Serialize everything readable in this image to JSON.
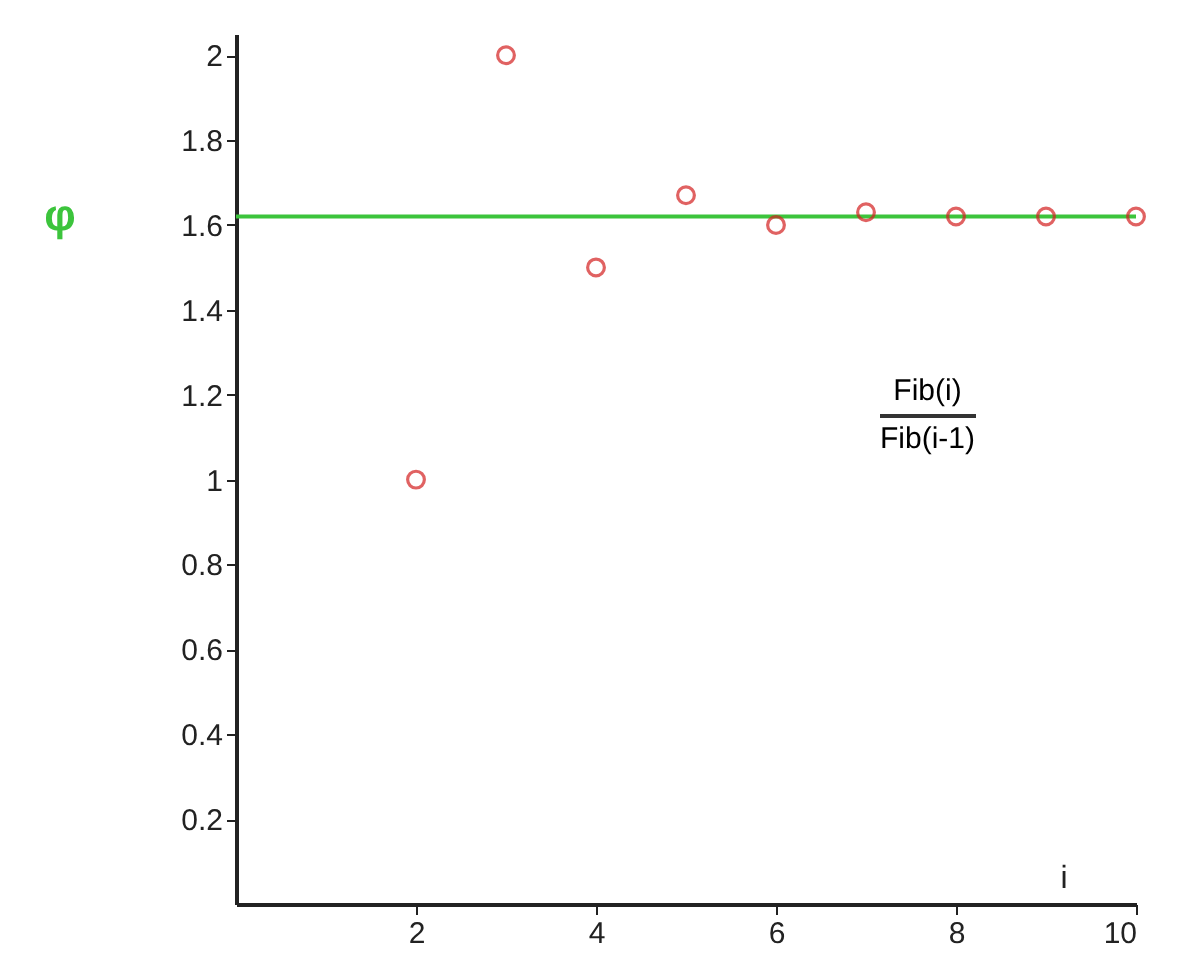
{
  "chart_data": {
    "type": "scatter",
    "xlabel": "i",
    "annotations": [
      "Fib(i)",
      "Fib(i-1)"
    ],
    "x": [
      2,
      3,
      4,
      5,
      6,
      7,
      8,
      9,
      10
    ],
    "series": [
      {
        "color": "#d42020",
        "values": [
          1,
          2,
          1.5,
          1.67,
          1.6,
          1.63,
          1.62,
          1.62,
          1.62
        ]
      }
    ],
    "marker": "circle",
    "ref_lines": [
      {
        "axis": "y",
        "value": 1.62,
        "label": "φ",
        "color": "#3cc43c"
      }
    ],
    "xlim": [
      0,
      10
    ],
    "xticks": [
      2,
      4,
      6,
      8,
      10
    ],
    "ylim": [
      0,
      2.05
    ],
    "yticks": [
      0.2,
      0.4,
      0.6,
      0.8,
      1,
      1.2,
      1.4,
      1.6,
      1.8,
      2
    ]
  }
}
